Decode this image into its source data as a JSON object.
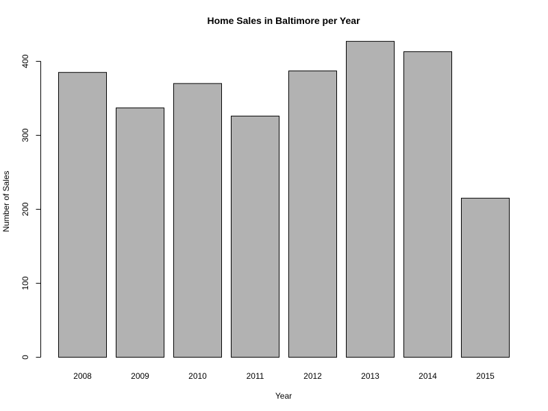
{
  "chart_data": {
    "type": "bar",
    "title": "Home Sales in Baltimore per Year",
    "xlabel": "Year",
    "ylabel": "Number of Sales",
    "categories": [
      "2008",
      "2009",
      "2010",
      "2011",
      "2012",
      "2013",
      "2014",
      "2015"
    ],
    "values": [
      385,
      337,
      370,
      326,
      387,
      427,
      413,
      215
    ],
    "ylim": [
      0,
      430
    ],
    "yticks": [
      0,
      100,
      200,
      300,
      400
    ],
    "grid": false,
    "legend": "none",
    "bar_color": "#b2b2b2"
  }
}
